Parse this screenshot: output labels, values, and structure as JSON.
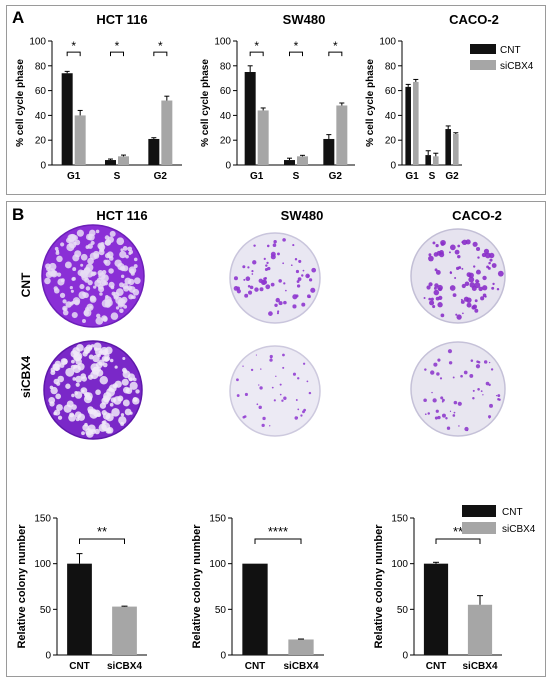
{
  "panel_a": {
    "label": "A",
    "legend": [
      {
        "name": "CNT",
        "color": "#111111"
      },
      {
        "name": "siCBX4",
        "color": "#a6a6a6"
      }
    ]
  },
  "panel_b": {
    "label": "B",
    "row_labels": [
      "CNT",
      "siCBX4"
    ],
    "column_titles": [
      "HCT 116",
      "SW480",
      "CACO-2"
    ],
    "legend": [
      {
        "name": "CNT",
        "color": "#111111"
      },
      {
        "name": "siCBX4",
        "color": "#a6a6a6"
      }
    ]
  },
  "chart_data": [
    {
      "type": "bar",
      "title": "HCT 116",
      "ylabel": "% cell cycle phase",
      "ylim": [
        0,
        100
      ],
      "yticks": [
        0,
        20,
        40,
        60,
        80,
        100
      ],
      "categories": [
        "G1",
        "S",
        "G2"
      ],
      "series": [
        {
          "name": "CNT",
          "values": [
            74,
            4,
            21
          ],
          "errors": [
            1.5,
            0.8,
            1
          ]
        },
        {
          "name": "siCBX4",
          "values": [
            40,
            7,
            52
          ],
          "errors": [
            4,
            1,
            3.5
          ]
        }
      ],
      "annotations": [
        "*",
        "*",
        "*"
      ]
    },
    {
      "type": "bar",
      "title": "SW480",
      "ylabel": "% cell cycle phase",
      "ylim": [
        0,
        100
      ],
      "yticks": [
        0,
        20,
        40,
        60,
        80,
        100
      ],
      "categories": [
        "G1",
        "S",
        "G2"
      ],
      "series": [
        {
          "name": "CNT",
          "values": [
            75,
            4,
            21
          ],
          "errors": [
            5,
            1.5,
            3.5
          ]
        },
        {
          "name": "siCBX4",
          "values": [
            44,
            7,
            48
          ],
          "errors": [
            2,
            0.8,
            2
          ]
        }
      ],
      "annotations": [
        "*",
        "*",
        "*"
      ]
    },
    {
      "type": "bar",
      "title": "CACO-2",
      "ylabel": "% cell cycle phase",
      "ylim": [
        0,
        100
      ],
      "yticks": [
        0,
        20,
        40,
        60,
        80,
        100
      ],
      "categories": [
        "G1",
        "S",
        "G2"
      ],
      "series": [
        {
          "name": "CNT",
          "values": [
            63,
            8,
            29
          ],
          "errors": [
            2,
            3.5,
            2.5
          ]
        },
        {
          "name": "siCBX4",
          "values": [
            67,
            7,
            25
          ],
          "errors": [
            2,
            2.5,
            1
          ]
        }
      ],
      "annotations": []
    },
    {
      "type": "bar",
      "title": "",
      "ylabel": "Relative colony number",
      "ylim": [
        0,
        150
      ],
      "yticks": [
        0,
        50,
        100,
        150
      ],
      "categories": [
        "CNT",
        "siCBX4"
      ],
      "values": [
        100,
        53
      ],
      "errors": [
        11,
        0.5
      ],
      "colors": [
        "#111111",
        "#a6a6a6"
      ],
      "annotation": "**"
    },
    {
      "type": "bar",
      "title": "",
      "ylabel": "Relative colony number",
      "ylim": [
        0,
        150
      ],
      "yticks": [
        0,
        50,
        100,
        150
      ],
      "categories": [
        "CNT",
        "siCBX4"
      ],
      "values": [
        100,
        17
      ],
      "errors": [
        0,
        0.5
      ],
      "colors": [
        "#111111",
        "#a6a6a6"
      ],
      "annotation": "****"
    },
    {
      "type": "bar",
      "title": "",
      "ylabel": "Relative colony number",
      "ylim": [
        0,
        150
      ],
      "yticks": [
        0,
        50,
        100,
        150
      ],
      "categories": [
        "CNT",
        "siCBX4"
      ],
      "values": [
        100,
        55
      ],
      "errors": [
        1.5,
        10
      ],
      "colors": [
        "#111111",
        "#a6a6a6"
      ],
      "annotation": "**"
    }
  ]
}
